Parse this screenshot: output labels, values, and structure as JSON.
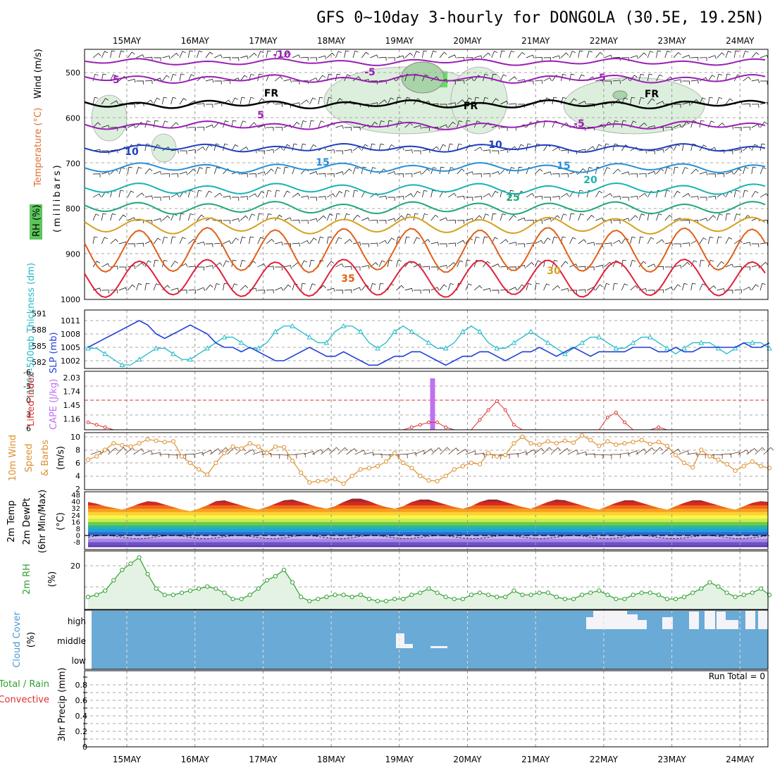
{
  "title": "GFS 0~10day 3-hourly for DONGOLA (30.5E, 19.25N)",
  "days": [
    "15MAY",
    "16MAY",
    "17MAY",
    "18MAY",
    "19MAY",
    "20MAY",
    "21MAY",
    "22MAY",
    "23MAY",
    "24MAY"
  ],
  "colors": {
    "temp_lines": [
      "#9a1fb5",
      "#000000",
      "#1f3fbf",
      "#2a8fd6",
      "#1ab3b3",
      "#1fa87a",
      "#d8a020",
      "#e06018",
      "#e0203a"
    ],
    "slp": "#1f3fd6",
    "thickness": "#22bbc8",
    "li": "#e03030",
    "cape": "#c070f0",
    "wind10": "#e09030",
    "rh2m": "#30a030",
    "cloud": "#6aaad6",
    "cloud_gap": "#f4f4f8",
    "precip_total": "#30a030",
    "precip_conv": "#e03030"
  },
  "panels": {
    "sounding": {
      "ylabel": "(millibars)",
      "yticks": [
        "500",
        "600",
        "700",
        "800",
        "900",
        "1000"
      ],
      "legend": [
        {
          "text": "RH (%)",
          "color": "#2aa02a"
        },
        {
          "text": "Temperature (°C)",
          "color": "#e07030"
        },
        {
          "text": "Wind (m/s)",
          "color": "#000000"
        }
      ],
      "contour_labels": [
        {
          "text": "-10",
          "color": "#9a1fb5"
        },
        {
          "text": "-5",
          "color": "#9a1fb5"
        },
        {
          "text": "-5",
          "color": "#9a1fb5"
        },
        {
          "text": "-5",
          "color": "#9a1fb5"
        },
        {
          "text": "5",
          "color": "#9a1fb5"
        },
        {
          "text": "-5",
          "color": "#9a1fb5"
        },
        {
          "text": "FR",
          "color": "#000000"
        },
        {
          "text": "FR",
          "color": "#000000"
        },
        {
          "text": "FR",
          "color": "#000000"
        },
        {
          "text": "10",
          "color": "#1f3fbf"
        },
        {
          "text": "10",
          "color": "#1f3fbf"
        },
        {
          "text": "15",
          "color": "#2a8fd6"
        },
        {
          "text": "15",
          "color": "#2a8fd6"
        },
        {
          "text": "20",
          "color": "#1ab3b3"
        },
        {
          "text": "25",
          "color": "#1fa87a"
        },
        {
          "text": "30",
          "color": "#d8a020"
        },
        {
          "text": "35",
          "color": "#e06018"
        }
      ]
    },
    "slp_panel": {
      "left_label": "1000-500mb Thickness (dm)",
      "right_label": "SLP (mb)",
      "left_ticks": [
        "591",
        "588",
        "585",
        "582"
      ],
      "right_ticks": [
        "1011",
        "1008",
        "1005",
        "1002"
      ]
    },
    "li_panel": {
      "left_label": "Lifted Index",
      "right_label": "CAPE (J/kg)",
      "left_ticks": [
        "-6",
        "-3",
        "0",
        "3",
        "6"
      ],
      "right_ticks": [
        "2.03",
        "1.74",
        "1.45",
        "1.16"
      ]
    },
    "wind_panel": {
      "label1": "10m Wind",
      "label2": "Speed",
      "label3": "& Barbs",
      "unit": "(m/s)",
      "ticks": [
        "10",
        "8",
        "6",
        "4",
        "2"
      ]
    },
    "temp_panel": {
      "label1": "2m Temp",
      "label2": "2m DewPt",
      "label3": "(6hr Min/Max)",
      "unit": "(°C)",
      "ticks": [
        "48",
        "40",
        "32",
        "24",
        "16",
        "8",
        "0",
        "-8"
      ]
    },
    "rh_panel": {
      "label": "2m RH",
      "unit": "(%)",
      "ticks": [
        "20"
      ]
    },
    "cloud_panel": {
      "label": "Cloud Cover",
      "unit": "(%)",
      "levels": [
        "high",
        "middle",
        "low"
      ]
    },
    "precip_panel": {
      "label1": "Total / Rain",
      "label2": "Convective",
      "ylabel": "3hr Precip (mm)",
      "ticks": [
        "0.8",
        "0.6",
        "0.4",
        "0.2",
        "0"
      ],
      "run_total": "Run Total = 0"
    }
  },
  "chart_data": [
    {
      "type": "line",
      "panel": "SLP / thickness",
      "x_unit": "3-hourly steps from 14MAY 12Z",
      "series": [
        {
          "name": "SLP (mb)",
          "values": [
            1005,
            1006,
            1007,
            1008,
            1009,
            1010,
            1011,
            1010,
            1008,
            1007,
            1008,
            1009,
            1010,
            1009,
            1008,
            1006,
            1005,
            1005,
            1004,
            1005,
            1004,
            1003,
            1002,
            1002,
            1003,
            1004,
            1005,
            1004,
            1003,
            1003,
            1004,
            1003,
            1002,
            1001,
            1001,
            1002,
            1003,
            1003,
            1004,
            1004,
            1003,
            1002,
            1001,
            1002,
            1003,
            1003,
            1004,
            1004,
            1003,
            1002,
            1003,
            1004,
            1004,
            1005,
            1004,
            1003,
            1004,
            1005,
            1004,
            1003,
            1004,
            1004,
            1004,
            1004,
            1005,
            1005,
            1005,
            1004,
            1004,
            1005,
            1004,
            1004,
            1005,
            1005,
            1005,
            1005,
            1005,
            1006,
            1005,
            1005,
            1006
          ]
        },
        {
          "name": "Thickness (dm)",
          "values": [
            585,
            585,
            584,
            583,
            582,
            582,
            583,
            584,
            585,
            585,
            584,
            583,
            583,
            584,
            585,
            586,
            587,
            587,
            586,
            585,
            585,
            586,
            588,
            589,
            589,
            588,
            587,
            586,
            586,
            588,
            589,
            589,
            588,
            586,
            585,
            586,
            588,
            589,
            588,
            587,
            586,
            585,
            585,
            586,
            588,
            589,
            588,
            586,
            585,
            585,
            586,
            587,
            588,
            587,
            586,
            585,
            584,
            585,
            586,
            587,
            587,
            586,
            585,
            585,
            586,
            587,
            587,
            586,
            585,
            584,
            585,
            586,
            586,
            586,
            585,
            584,
            585,
            586,
            586,
            586,
            585
          ]
        }
      ]
    },
    {
      "type": "line",
      "panel": "Lifted Index",
      "series": [
        {
          "name": "Lifted Index",
          "values": [
            4.5,
            5,
            5.5,
            6,
            6,
            6,
            6,
            6,
            6,
            6,
            6,
            6,
            6,
            6,
            6,
            6,
            6,
            6,
            6,
            6,
            6,
            6,
            6,
            6,
            6,
            6,
            6,
            6,
            6,
            6,
            6,
            6,
            6,
            6,
            6,
            6,
            6,
            6,
            5.5,
            5,
            4.5,
            4.5,
            5.5,
            6,
            6,
            6,
            4,
            2,
            0.2,
            2,
            5,
            6,
            6,
            6,
            6,
            6,
            6,
            6,
            6,
            6,
            6,
            3.5,
            2.5,
            4.5,
            6,
            6,
            6,
            5.5,
            6,
            6,
            6,
            6,
            6,
            6,
            6,
            6,
            6,
            6,
            6,
            6,
            6
          ]
        }
      ],
      "cape_bar": {
        "label": "CAPE",
        "value": 2.03,
        "step": 40
      }
    },
    {
      "type": "line",
      "panel": "10m Wind Speed",
      "series": [
        {
          "name": "10m Wind Speed (m/s)",
          "values": [
            6.5,
            7,
            8,
            9,
            8.7,
            8.5,
            9,
            9.6,
            9.4,
            9.2,
            9.3,
            7,
            6,
            5,
            4.2,
            6,
            7.5,
            8.5,
            8.2,
            9,
            8.5,
            7.5,
            8.5,
            8.4,
            6.3,
            4.5,
            3,
            3.2,
            3.3,
            3.5,
            2.8,
            4,
            5,
            5.2,
            5.5,
            6.2,
            7.5,
            6,
            5.2,
            4,
            3.3,
            3.2,
            4,
            5,
            5.5,
            6,
            5.8,
            7.5,
            7,
            7.2,
            9,
            10,
            9,
            8.8,
            9.3,
            9,
            9.4,
            9.1,
            10.2,
            9.5,
            8.6,
            9.3,
            8.8,
            9,
            9.2,
            9.5,
            8.9,
            9.2,
            8.6,
            7.2,
            6,
            5.3,
            8,
            7,
            6.5,
            5.8,
            4.8,
            5.5,
            6.2,
            5.5,
            5.2
          ]
        }
      ]
    },
    {
      "type": "area",
      "panel": "2m Temp",
      "series": [
        {
          "name": "2m Temp (°C)",
          "values": [
            40,
            38,
            35,
            33,
            31,
            34,
            38,
            41,
            40,
            37,
            34,
            31,
            29,
            32,
            36,
            41,
            42,
            39,
            36,
            33,
            31,
            34,
            38,
            42,
            43,
            40,
            37,
            34,
            32,
            35,
            40,
            44,
            44,
            41,
            37,
            34,
            32,
            35,
            40,
            43,
            43,
            40,
            37,
            34,
            32,
            35,
            40,
            43,
            43,
            40,
            37,
            34,
            32,
            36,
            40,
            43,
            42,
            39,
            36,
            33,
            31,
            35,
            39,
            42,
            42,
            39,
            36,
            33,
            31,
            35,
            39,
            42,
            42,
            39,
            36,
            33,
            31,
            35,
            39,
            41,
            40
          ]
        }
      ]
    },
    {
      "type": "line",
      "panel": "2m RH (%)",
      "series": [
        {
          "name": "2m RH (%)",
          "values": [
            5,
            6,
            8,
            13,
            18,
            21,
            24,
            16,
            9,
            6,
            6,
            7,
            8,
            9,
            10,
            9,
            7,
            4,
            4,
            6,
            9,
            13,
            15,
            18,
            12,
            5,
            3,
            4,
            5,
            6,
            6,
            5,
            6,
            4,
            3,
            3,
            4,
            4,
            6,
            7,
            9,
            7,
            5,
            4,
            4,
            6,
            7,
            6,
            5,
            5,
            8,
            6,
            6,
            7,
            7,
            5,
            4,
            4,
            6,
            7,
            8,
            6,
            4,
            4,
            6,
            7,
            7,
            6,
            4,
            4,
            5,
            7,
            9,
            12,
            10,
            7,
            5,
            6,
            7,
            9,
            6
          ]
        }
      ]
    },
    {
      "type": "bar",
      "panel": "Cloud Cover",
      "series": [
        {
          "name": "high",
          "values": [
            0,
            0,
            0,
            0,
            0,
            0,
            0,
            0,
            0,
            0,
            0,
            0,
            0,
            0,
            0,
            0,
            0,
            0,
            0,
            0,
            0,
            0,
            0,
            0,
            0,
            0,
            0,
            0,
            0,
            0,
            0,
            0,
            0,
            0,
            0,
            0,
            0,
            0,
            0,
            0,
            0,
            0,
            0,
            0,
            0,
            0,
            0,
            0,
            0,
            0,
            0,
            0,
            0,
            0,
            0,
            0,
            0,
            0,
            0,
            0,
            0,
            0,
            0,
            0,
            0,
            0,
            0,
            0,
            0,
            0,
            0,
            0,
            0,
            0,
            0,
            0,
            0,
            0,
            0,
            0,
            0,
            0,
            0,
            0,
            0,
            0,
            0,
            0,
            0,
            0,
            0,
            0,
            0,
            0,
            0,
            0,
            0,
            0,
            0,
            0,
            0
          ]
        },
        {
          "name": "middle",
          "values": [
            0,
            0,
            0,
            0,
            0,
            0,
            0,
            0,
            0,
            0,
            0,
            0,
            0,
            0,
            0,
            0,
            0,
            0,
            0,
            0,
            0,
            0,
            0,
            0,
            0,
            0,
            0,
            0,
            0,
            0,
            0,
            0,
            0,
            0,
            0,
            0,
            0,
            0,
            0,
            0,
            0,
            0,
            0,
            0,
            0,
            0,
            0,
            0,
            0,
            0,
            0,
            0,
            0,
            0,
            0,
            0,
            0,
            0,
            0,
            0,
            0,
            0,
            0,
            0,
            0,
            0,
            0,
            0,
            0,
            0,
            0,
            0,
            0,
            0,
            0,
            0,
            0,
            0,
            0,
            0,
            0,
            0,
            0,
            0,
            0,
            0,
            0,
            0,
            0,
            0,
            0,
            0,
            0,
            0,
            0,
            0,
            0,
            0,
            0,
            0,
            0
          ]
        },
        {
          "name": "low",
          "values": [
            0,
            0,
            0,
            0,
            0,
            0,
            0,
            0,
            0,
            0,
            0,
            0,
            0,
            0,
            0,
            0,
            0,
            0,
            0,
            0,
            0,
            0,
            0,
            0,
            0,
            0,
            0,
            0,
            0,
            0,
            0,
            0,
            0,
            0,
            0,
            0,
            0,
            0,
            0,
            0,
            0,
            0,
            0,
            0,
            0,
            0,
            0,
            0,
            0,
            0,
            0,
            0,
            0,
            0,
            0,
            0,
            0,
            0,
            0,
            0,
            0,
            0,
            0,
            0,
            0,
            0,
            0,
            0,
            0,
            0,
            0,
            0,
            0,
            0,
            0,
            0,
            0,
            0,
            0,
            0,
            0,
            0,
            0,
            0,
            0,
            0,
            0,
            0,
            0,
            0,
            0,
            0,
            0,
            0,
            0,
            0,
            0,
            0,
            0,
            0,
            0
          ]
        }
      ]
    },
    {
      "type": "bar",
      "panel": "3hr Precip (mm)",
      "series": [
        {
          "name": "Total / Rain",
          "values": [
            0
          ]
        }
      ],
      "ylim": [
        0,
        0.9
      ]
    }
  ]
}
